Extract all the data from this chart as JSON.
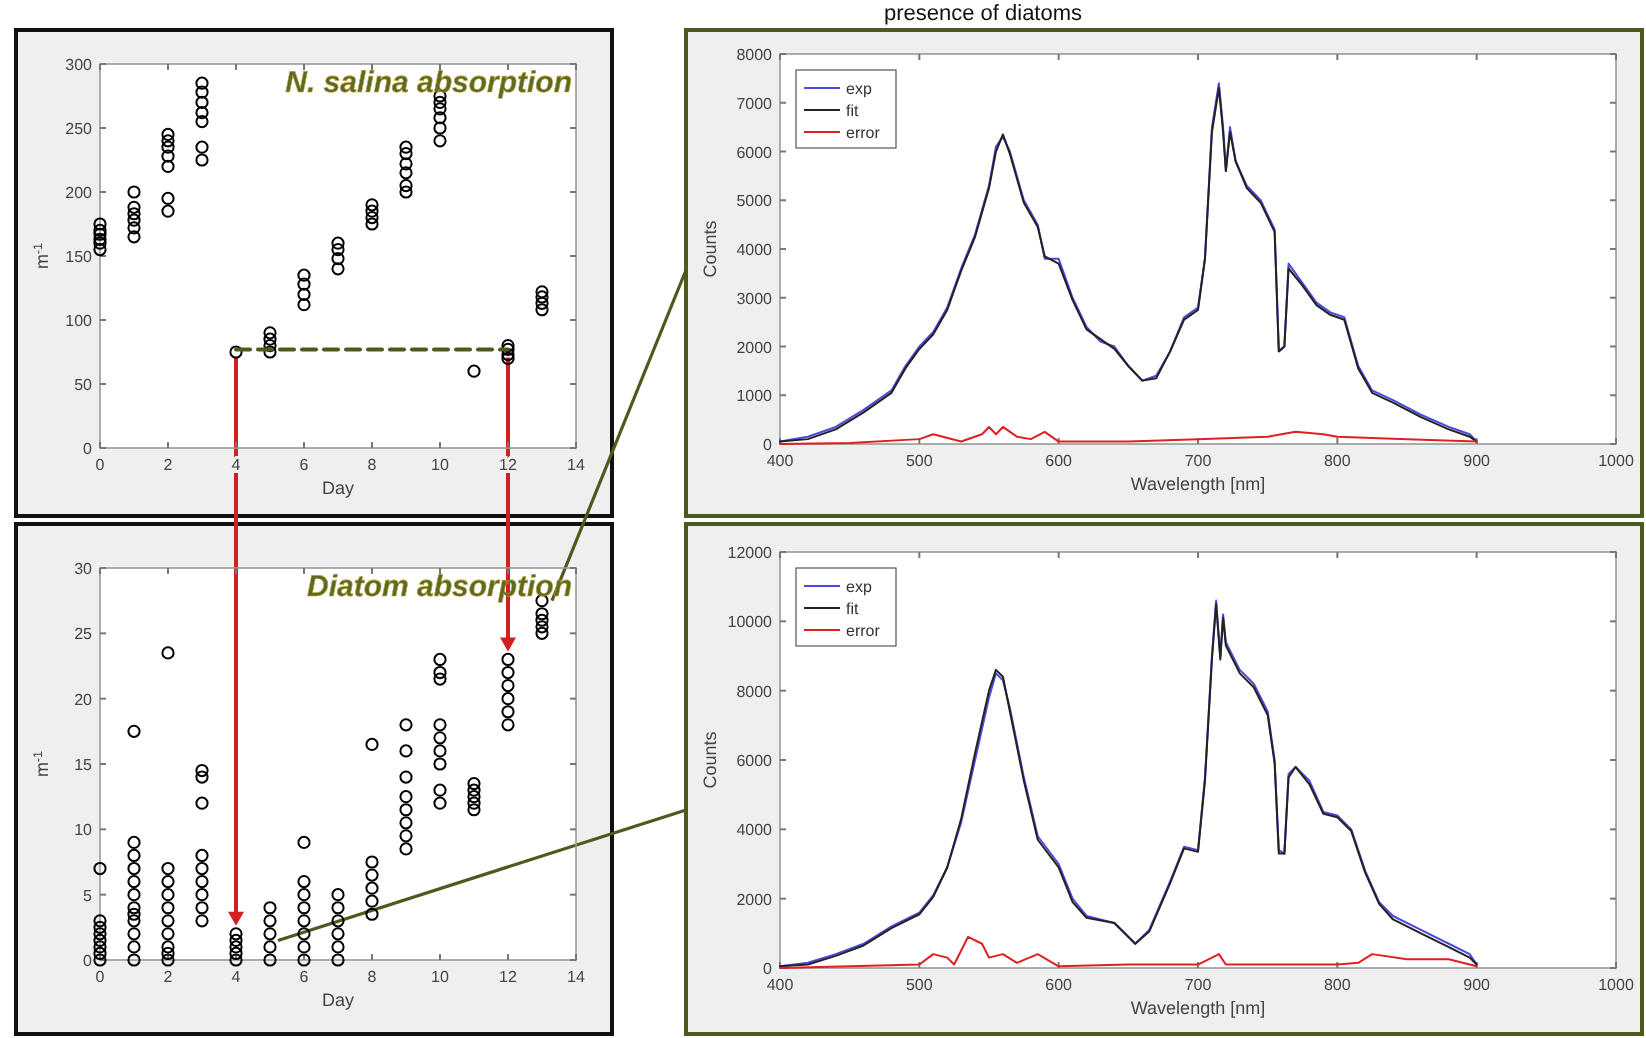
{
  "chart_data": [
    {
      "type": "scatter",
      "title": "N. salina absorption",
      "annotations": [
        "presence of diatoms"
      ],
      "xlabel": "Day",
      "ylabel": "m$^{-1}$",
      "xlim": [
        0,
        14
      ],
      "xticks": [
        0,
        2,
        4,
        6,
        8,
        10,
        12,
        14
      ],
      "ylim": [
        0,
        300
      ],
      "yticks": [
        0,
        50,
        100,
        150,
        200,
        250,
        300
      ],
      "marker": "circle",
      "grid": false,
      "series": [
        {
          "color": "#000000",
          "x": [
            0,
            0,
            0,
            0,
            0,
            0,
            1,
            1,
            1,
            1,
            1,
            1,
            2,
            2,
            2,
            2,
            2,
            2,
            2,
            3,
            3,
            3,
            3,
            3,
            3,
            3,
            4,
            5,
            5,
            5,
            5,
            6,
            6,
            6,
            6,
            7,
            7,
            7,
            7,
            8,
            8,
            8,
            8,
            9,
            9,
            9,
            9,
            9,
            9,
            10,
            10,
            10,
            10,
            10,
            10,
            11,
            12,
            12,
            12,
            12,
            13,
            13,
            13,
            13
          ],
          "values": [
            155,
            160,
            163,
            167,
            170,
            175,
            165,
            172,
            178,
            183,
            188,
            200,
            185,
            195,
            220,
            228,
            235,
            240,
            245,
            225,
            235,
            255,
            262,
            270,
            278,
            285,
            75,
            75,
            80,
            85,
            90,
            112,
            120,
            128,
            135,
            140,
            148,
            155,
            160,
            175,
            180,
            185,
            190,
            200,
            205,
            215,
            222,
            230,
            235,
            240,
            250,
            258,
            265,
            270,
            275,
            60,
            70,
            73,
            77,
            80,
            108,
            113,
            118,
            122
          ]
        },
        {
          "type": "line",
          "line_style": "dashed",
          "marker": "none",
          "color": "#4d5a1e",
          "x": [
            4,
            12
          ],
          "values": [
            77,
            77
          ]
        }
      ]
    },
    {
      "type": "line",
      "xlabel": "Wavelength [nm]",
      "ylabel": "Counts",
      "xlim": [
        400,
        1000
      ],
      "xticks": [
        400,
        500,
        600,
        700,
        800,
        900,
        1000
      ],
      "ylim": [
        0,
        8000
      ],
      "yticks": [
        0,
        1000,
        2000,
        3000,
        4000,
        5000,
        6000,
        7000,
        8000
      ],
      "legend": "top left",
      "grid": false,
      "series": [
        {
          "name": "exp",
          "color": "#4a4ae0",
          "x": [
            400,
            420,
            440,
            460,
            480,
            490,
            500,
            510,
            520,
            530,
            540,
            550,
            555,
            560,
            565,
            575,
            585,
            590,
            600,
            610,
            620,
            630,
            640,
            650,
            660,
            670,
            680,
            690,
            700,
            705,
            710,
            715,
            718,
            720,
            723,
            727,
            735,
            745,
            755,
            758,
            762,
            765,
            775,
            785,
            795,
            805,
            815,
            825,
            840,
            860,
            880,
            895,
            900
          ],
          "values": [
            50,
            150,
            350,
            700,
            1100,
            1600,
            2000,
            2300,
            2800,
            3600,
            4300,
            5300,
            6100,
            6300,
            6000,
            5000,
            4500,
            3800,
            3800,
            3000,
            2400,
            2100,
            2000,
            1600,
            1300,
            1400,
            1900,
            2600,
            2800,
            3800,
            6500,
            7400,
            6500,
            5600,
            6500,
            5800,
            5300,
            5000,
            4400,
            1900,
            2000,
            3700,
            3300,
            2900,
            2700,
            2600,
            1600,
            1100,
            900,
            600,
            350,
            200,
            50
          ]
        },
        {
          "name": "fit",
          "color": "#222222",
          "x": [
            400,
            420,
            440,
            460,
            480,
            490,
            500,
            510,
            520,
            530,
            540,
            550,
            555,
            560,
            565,
            575,
            585,
            590,
            600,
            610,
            620,
            630,
            640,
            650,
            660,
            670,
            680,
            690,
            700,
            705,
            710,
            715,
            718,
            720,
            723,
            727,
            735,
            745,
            755,
            758,
            762,
            765,
            775,
            785,
            795,
            805,
            815,
            825,
            840,
            860,
            880,
            895,
            900
          ],
          "values": [
            50,
            100,
            300,
            650,
            1050,
            1550,
            1950,
            2250,
            2750,
            3550,
            4250,
            5250,
            6000,
            6350,
            5950,
            4950,
            4450,
            3850,
            3700,
            2950,
            2350,
            2150,
            1950,
            1600,
            1300,
            1350,
            1900,
            2550,
            2750,
            3800,
            6400,
            7300,
            6400,
            5600,
            6400,
            5800,
            5250,
            4950,
            4350,
            1900,
            2000,
            3600,
            3250,
            2850,
            2650,
            2550,
            1550,
            1050,
            850,
            550,
            300,
            150,
            50
          ]
        },
        {
          "name": "error",
          "color": "#e02020",
          "x": [
            400,
            450,
            500,
            510,
            530,
            545,
            550,
            555,
            560,
            570,
            580,
            590,
            600,
            650,
            700,
            750,
            760,
            770,
            790,
            800,
            850,
            900
          ],
          "values": [
            0,
            20,
            100,
            200,
            50,
            200,
            350,
            200,
            350,
            150,
            100,
            250,
            50,
            50,
            100,
            150,
            200,
            250,
            200,
            150,
            100,
            50
          ]
        }
      ]
    },
    {
      "type": "scatter",
      "title": "Diatom absorption",
      "xlabel": "Day",
      "ylabel": "m$^{-1}$",
      "xlim": [
        0,
        14
      ],
      "xticks": [
        0,
        2,
        4,
        6,
        8,
        10,
        12,
        14
      ],
      "ylim": [
        0,
        30
      ],
      "yticks": [
        0,
        5,
        10,
        15,
        20,
        25,
        30
      ],
      "marker": "circle",
      "grid": false,
      "series": [
        {
          "color": "#000000",
          "x": [
            0,
            0,
            0,
            0,
            0,
            0,
            0,
            0,
            1,
            1,
            1,
            1,
            1,
            1,
            1,
            1,
            1,
            1,
            1,
            1,
            2,
            2,
            2,
            2,
            2,
            2,
            2,
            2,
            2,
            2,
            3,
            3,
            3,
            3,
            3,
            3,
            3,
            3,
            3,
            4,
            4,
            4,
            4,
            4,
            5,
            5,
            5,
            5,
            5,
            6,
            6,
            6,
            6,
            6,
            6,
            6,
            6,
            7,
            7,
            7,
            7,
            7,
            7,
            8,
            8,
            8,
            8,
            8,
            8,
            9,
            9,
            9,
            9,
            9,
            9,
            9,
            9,
            10,
            10,
            10,
            10,
            10,
            10,
            10,
            10,
            10,
            11,
            11,
            11,
            11,
            11,
            12,
            12,
            12,
            12,
            12,
            12,
            13,
            13,
            13,
            13,
            13
          ],
          "values": [
            0,
            0.5,
            1,
            1.5,
            2,
            2.5,
            3,
            7,
            0,
            1,
            2,
            3,
            3.5,
            4,
            5,
            6,
            7,
            8,
            9,
            17.5,
            0,
            0.5,
            1,
            2,
            3,
            4,
            5,
            6,
            7,
            23.5,
            3,
            4,
            5,
            6,
            7,
            8,
            12,
            14,
            14.5,
            0,
            0.5,
            1,
            1.5,
            2,
            0,
            1,
            2,
            3,
            4,
            0,
            1,
            2,
            3,
            4,
            5,
            6,
            9,
            0,
            1,
            2,
            3,
            4,
            5,
            3.5,
            4.5,
            5.5,
            6.5,
            7.5,
            16.5,
            8.5,
            9.5,
            10.5,
            11.5,
            12.5,
            14,
            16,
            18,
            12,
            13,
            15,
            16,
            17,
            18,
            21.5,
            22,
            23,
            11.5,
            12,
            12.5,
            13,
            13.5,
            18,
            19,
            20,
            21,
            22,
            23,
            25,
            25.5,
            26,
            26.5,
            27.5
          ]
        }
      ]
    },
    {
      "type": "line",
      "xlabel": "Wavelength [nm]",
      "ylabel": "Counts",
      "xlim": [
        400,
        1000
      ],
      "xticks": [
        400,
        500,
        600,
        700,
        800,
        900,
        1000
      ],
      "ylim": [
        0,
        12000
      ],
      "yticks": [
        0,
        2000,
        4000,
        6000,
        8000,
        10000,
        12000
      ],
      "legend": "top left",
      "grid": false,
      "series": [
        {
          "name": "exp",
          "color": "#4a4ae0",
          "x": [
            400,
            420,
            440,
            460,
            480,
            500,
            510,
            520,
            530,
            540,
            550,
            555,
            560,
            565,
            575,
            585,
            600,
            610,
            620,
            640,
            655,
            665,
            680,
            690,
            700,
            705,
            710,
            713,
            716,
            718,
            720,
            730,
            740,
            750,
            755,
            758,
            762,
            765,
            770,
            780,
            790,
            800,
            810,
            820,
            830,
            840,
            860,
            880,
            895,
            900
          ],
          "values": [
            50,
            150,
            400,
            700,
            1200,
            1600,
            2100,
            2900,
            4200,
            6000,
            7800,
            8500,
            8300,
            7500,
            5500,
            3800,
            3000,
            2000,
            1500,
            1300,
            700,
            1100,
            2500,
            3500,
            3400,
            5500,
            9000,
            10600,
            9000,
            10200,
            9400,
            8600,
            8200,
            7400,
            6000,
            3400,
            3300,
            5600,
            5800,
            5400,
            4500,
            4400,
            4000,
            2800,
            1900,
            1500,
            1100,
            700,
            400,
            100
          ]
        },
        {
          "name": "fit",
          "color": "#222222",
          "x": [
            400,
            420,
            440,
            460,
            480,
            500,
            510,
            520,
            530,
            540,
            550,
            555,
            560,
            565,
            575,
            585,
            600,
            610,
            620,
            640,
            655,
            665,
            680,
            690,
            700,
            705,
            710,
            713,
            716,
            718,
            720,
            730,
            740,
            750,
            755,
            758,
            762,
            765,
            770,
            780,
            790,
            800,
            810,
            820,
            830,
            840,
            860,
            880,
            895,
            900
          ],
          "values": [
            50,
            100,
            350,
            650,
            1150,
            1550,
            2050,
            2900,
            4300,
            6200,
            8000,
            8600,
            8400,
            7400,
            5400,
            3700,
            2900,
            1900,
            1450,
            1300,
            700,
            1050,
            2450,
            3450,
            3350,
            5400,
            8900,
            10500,
            8900,
            10100,
            9300,
            8500,
            8100,
            7300,
            5900,
            3300,
            3300,
            5500,
            5800,
            5300,
            4450,
            4350,
            3950,
            2750,
            1850,
            1400,
            1000,
            600,
            300,
            100
          ]
        },
        {
          "name": "error",
          "color": "#e02020",
          "x": [
            400,
            500,
            510,
            520,
            525,
            535,
            545,
            550,
            560,
            570,
            585,
            600,
            650,
            700,
            715,
            720,
            800,
            815,
            825,
            850,
            880,
            900
          ],
          "values": [
            0,
            100,
            400,
            300,
            100,
            900,
            700,
            300,
            400,
            150,
            400,
            50,
            100,
            100,
            400,
            100,
            100,
            150,
            400,
            250,
            250,
            50
          ]
        }
      ]
    }
  ]
}
